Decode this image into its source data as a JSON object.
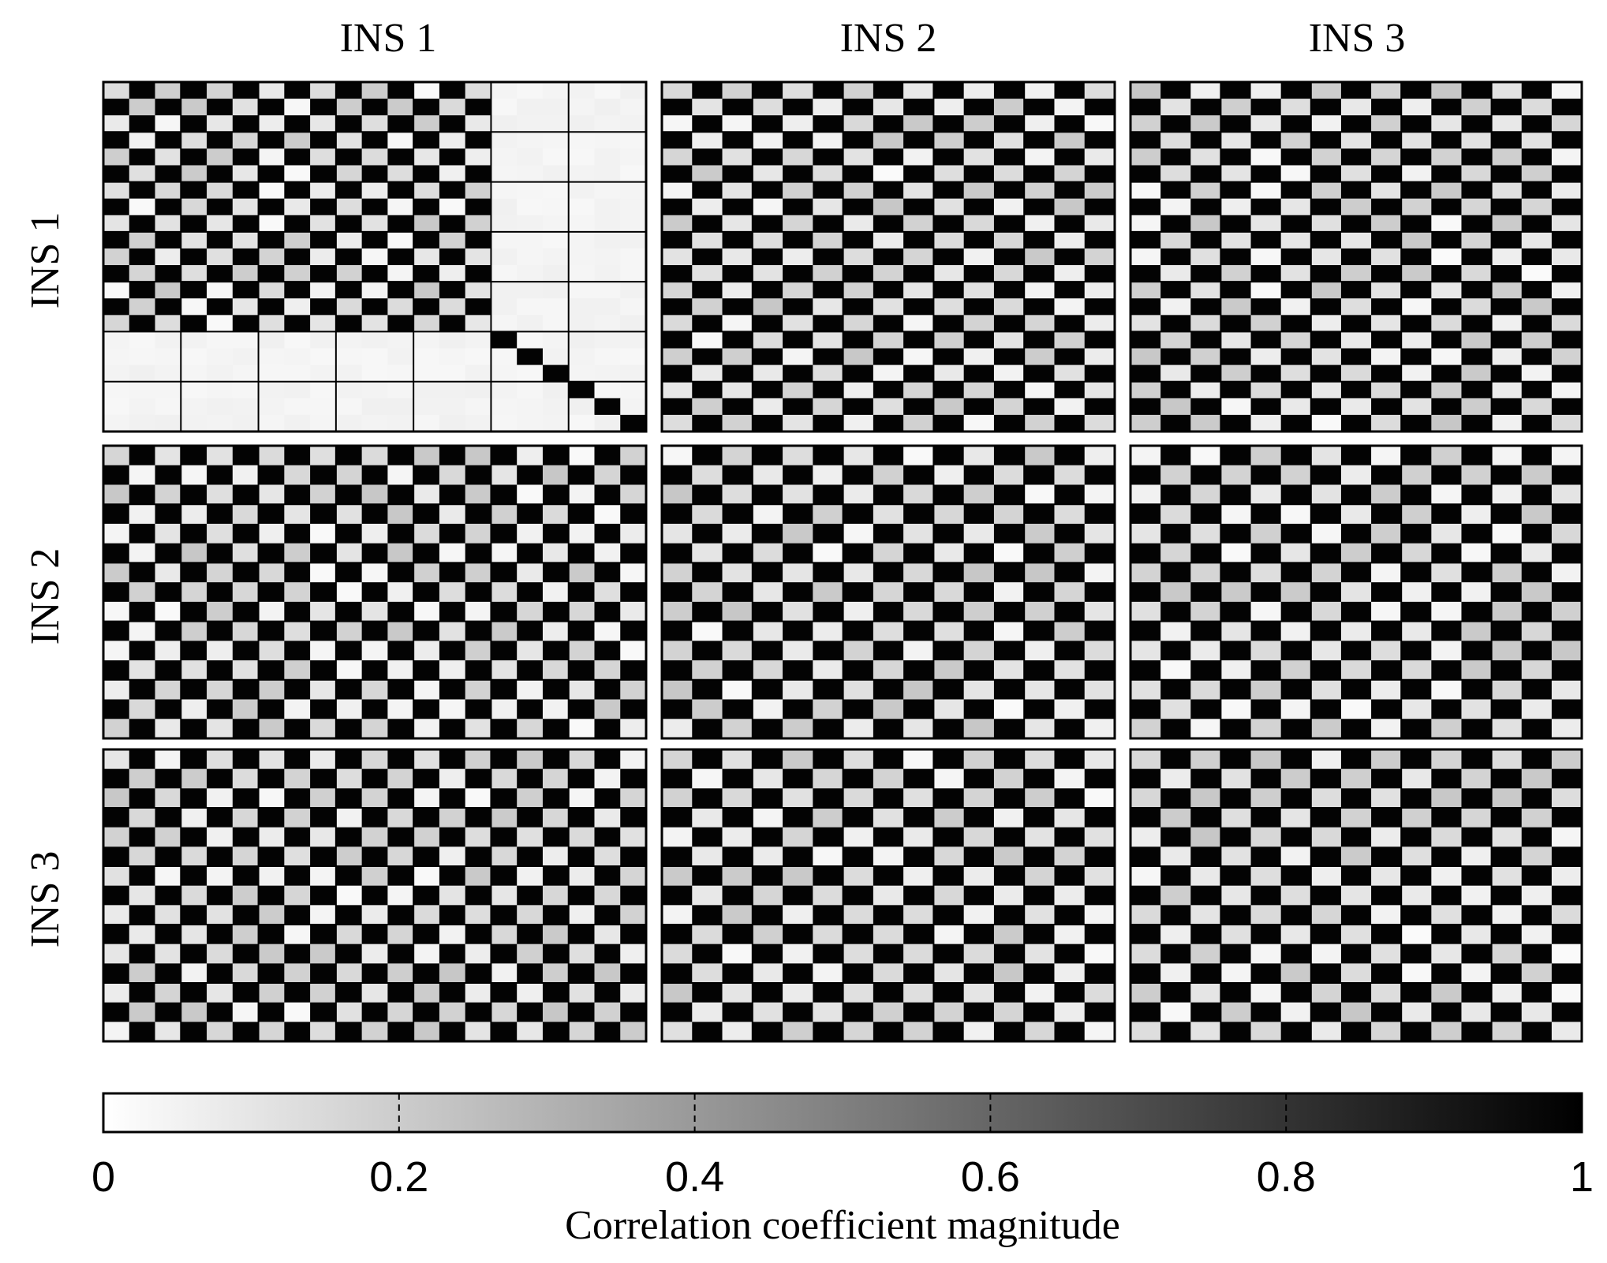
{
  "chart_data": {
    "type": "heatmap",
    "title": "",
    "column_titles": [
      "INS 1",
      "INS 2",
      "INS 3"
    ],
    "row_titles": [
      "INS 1",
      "INS 2",
      "INS 3"
    ],
    "block_rows": [
      21,
      15,
      15
    ],
    "block_cols": [
      21,
      15,
      15
    ],
    "block_size": 3,
    "cmap": "gray_r",
    "vmin": 0,
    "vmax": 1,
    "pattern_note": "checkerboard: cells where (row+col) is odd have magnitude ~0.99, others ~0.0-0.25; INS 1 x INS 1 bottom-right 6x6 block is diagonal only",
    "colorbar": {
      "label": "Correlation coefficient magnitude",
      "ticks": [
        0,
        0.2,
        0.4,
        0.6,
        0.8,
        1
      ],
      "tick_labels": [
        "0",
        "0.2",
        "0.4",
        "0.6",
        "0.8",
        "1"
      ]
    }
  },
  "colors": {
    "high": "#000000",
    "low": "#ffffff",
    "grid": "#000000"
  }
}
